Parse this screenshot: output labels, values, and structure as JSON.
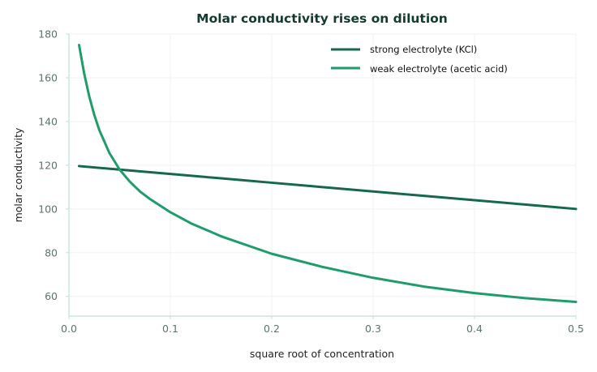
{
  "chart_data": {
    "type": "line",
    "title": "Molar conductivity rises on dilution",
    "xlabel": "square root of concentration",
    "ylabel": "molar conductivity",
    "xlim": [
      0.0,
      0.5
    ],
    "ylim": [
      51,
      180
    ],
    "xticks": [
      0.0,
      0.1,
      0.2,
      0.3,
      0.4,
      0.5
    ],
    "xtick_labels": [
      "0.0",
      "0.1",
      "0.2",
      "0.3",
      "0.4",
      "0.5"
    ],
    "yticks": [
      60,
      80,
      100,
      120,
      140,
      160,
      180
    ],
    "ytick_labels": [
      "60",
      "80",
      "100",
      "120",
      "140",
      "160",
      "180"
    ],
    "grid": true,
    "legend_position": "top-right",
    "series": [
      {
        "name": "strong electrolyte (KCl)",
        "color": "#14694a",
        "x": [
          0.01,
          0.05,
          0.1,
          0.15,
          0.2,
          0.25,
          0.3,
          0.35,
          0.4,
          0.45,
          0.5
        ],
        "y": [
          119.6,
          118.0,
          116.0,
          114.0,
          112.0,
          110.0,
          108.0,
          106.0,
          104.0,
          102.0,
          100.0
        ]
      },
      {
        "name": "weak electrolyte (acetic acid)",
        "color": "#1f9c6b",
        "x": [
          0.01,
          0.015,
          0.02,
          0.025,
          0.03,
          0.04,
          0.05,
          0.06,
          0.07,
          0.08,
          0.1,
          0.12,
          0.15,
          0.2,
          0.25,
          0.3,
          0.35,
          0.4,
          0.45,
          0.5
        ],
        "y": [
          175.0,
          162.0,
          151.5,
          143.0,
          136.0,
          125.5,
          118.0,
          112.5,
          108.0,
          104.5,
          98.5,
          93.5,
          87.5,
          79.5,
          73.5,
          68.5,
          64.5,
          61.5,
          59.2,
          57.5
        ]
      }
    ]
  }
}
